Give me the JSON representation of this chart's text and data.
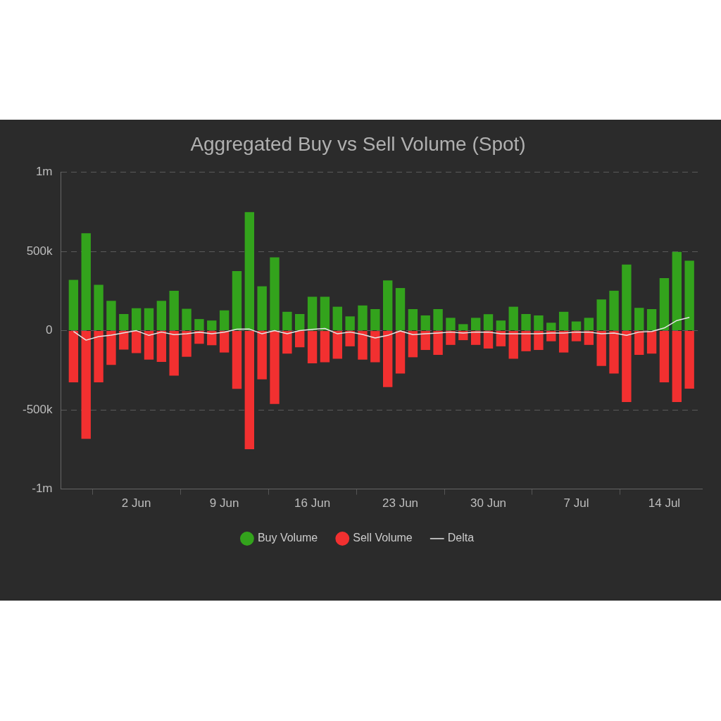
{
  "chart_data": {
    "type": "bar",
    "title": "Aggregated Buy vs Sell Volume (Spot)",
    "x": [
      "--05-28",
      "--05-29",
      "--05-30",
      "--05-31",
      "--06-01",
      "--06-02",
      "--06-03",
      "--06-04",
      "--06-05",
      "--06-06",
      "--06-07",
      "--06-08",
      "--06-09",
      "--06-10",
      "--06-11",
      "--06-12",
      "--06-13",
      "--06-14",
      "--06-15",
      "--06-16",
      "--06-17",
      "--06-18",
      "--06-19",
      "--06-20",
      "--06-21",
      "--06-22",
      "--06-23",
      "--06-24",
      "--06-25",
      "--06-26",
      "--06-27",
      "--06-28",
      "--06-29",
      "--06-30",
      "--07-01",
      "--07-02",
      "--07-03",
      "--07-04",
      "--07-05",
      "--07-06",
      "--07-07",
      "--07-08",
      "--07-09",
      "--07-10",
      "--07-11",
      "--07-12",
      "--07-13",
      "--07-14",
      "--07-15",
      "--07-16"
    ],
    "series": [
      {
        "name": "Buy Volume",
        "color": "#33a31c",
        "values": [
          321000,
          615000,
          289000,
          188000,
          105000,
          142000,
          142000,
          188000,
          252000,
          138000,
          73000,
          64000,
          128000,
          376000,
          748000,
          280000,
          463000,
          119000,
          105000,
          214000,
          214000,
          151000,
          90000,
          159000,
          136000,
          317000,
          269000,
          136000,
          96000,
          136000,
          81000,
          41000,
          81000,
          104000,
          64000,
          151000,
          105000,
          96000,
          50000,
          119000,
          58000,
          81000,
          197000,
          252000,
          417000,
          144000,
          136000,
          332000,
          497000,
          442000
        ]
      },
      {
        "name": "Sell Volume",
        "color": "#f23030",
        "values": [
          -326000,
          -683000,
          -326000,
          -216000,
          -119000,
          -142000,
          -183000,
          -197000,
          -284000,
          -165000,
          -83000,
          -92000,
          -138000,
          -367000,
          -748000,
          -307000,
          -463000,
          -145000,
          -105000,
          -206000,
          -200000,
          -177000,
          -99000,
          -183000,
          -200000,
          -356000,
          -271000,
          -168000,
          -122000,
          -153000,
          -90000,
          -60000,
          -90000,
          -113000,
          -99000,
          -177000,
          -130000,
          -122000,
          -67000,
          -138000,
          -67000,
          -90000,
          -223000,
          -271000,
          -451000,
          -153000,
          -145000,
          -326000,
          -451000,
          -366000
        ]
      },
      {
        "name": "Delta",
        "type": "line",
        "color": "#e6e6e6",
        "values": [
          -5000,
          -60000,
          -37000,
          -28000,
          -14000,
          0,
          -30000,
          -9000,
          -25000,
          -20000,
          -10000,
          -20000,
          -10000,
          9000,
          10000,
          -20000,
          0,
          -20000,
          0,
          8000,
          14000,
          -20000,
          -9000,
          -24000,
          -46000,
          -30000,
          -2000,
          -25000,
          -20000,
          -15000,
          -9000,
          -15000,
          -9000,
          -9000,
          -20000,
          -20000,
          -20000,
          -20000,
          -15000,
          -15000,
          -9000,
          -9000,
          -20000,
          -15000,
          -30000,
          -9000,
          -5000,
          17000,
          64000,
          84000
        ]
      }
    ],
    "stacked": true,
    "xlim": [
      "--05-27",
      "--07-17"
    ],
    "xticks": [
      {
        "value": "--06-02",
        "label": "2 Jun"
      },
      {
        "value": "--06-09",
        "label": "9 Jun"
      },
      {
        "value": "--06-16",
        "label": "16 Jun"
      },
      {
        "value": "--06-23",
        "label": "23 Jun"
      },
      {
        "value": "--06-30",
        "label": "30 Jun"
      },
      {
        "value": "--07-07",
        "label": "7 Jul"
      },
      {
        "value": "--07-14",
        "label": "14 Jul"
      }
    ],
    "ylim": [
      -1000000,
      1000000
    ],
    "yticks": [
      {
        "value": -1000000,
        "label": "-1m"
      },
      {
        "value": -500000,
        "label": "-500k"
      },
      0,
      {
        "value": 500000,
        "label": "500k"
      },
      {
        "value": 1000000,
        "label": "1m"
      }
    ],
    "grid": "y",
    "legend": "bottom"
  }
}
